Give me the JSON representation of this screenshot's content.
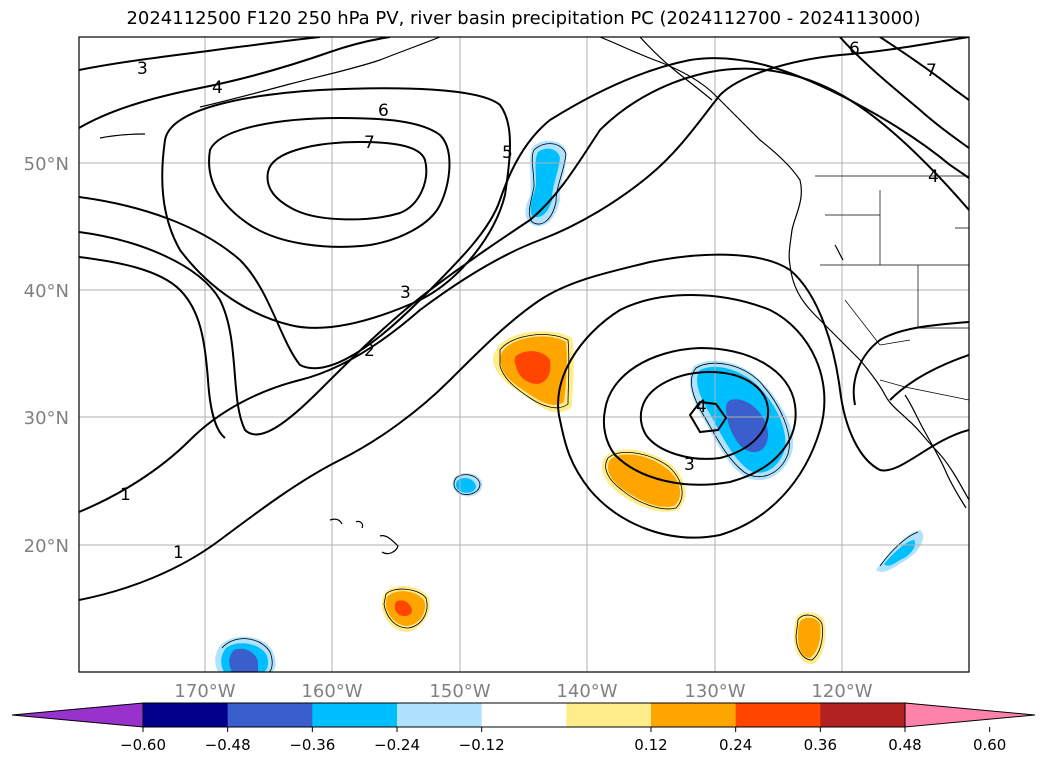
{
  "title": "2024112500 F120 250 hPa PV, river basin precipitation PC (2024112700 - 2024113000)",
  "lat_labels": [
    "50°N",
    "40°N",
    "30°N",
    "20°N"
  ],
  "lon_labels": [
    "170°W",
    "160°W",
    "150°W",
    "140°W",
    "130°W",
    "120°W"
  ],
  "contour_labels": [
    {
      "text": "3",
      "name": "pv-contour-label-3"
    },
    {
      "text": "4",
      "name": "pv-contour-label-4"
    },
    {
      "text": "6",
      "name": "pv-contour-label-6"
    },
    {
      "text": "7",
      "name": "pv-contour-label-7"
    },
    {
      "text": "5",
      "name": "pv-contour-label-5"
    },
    {
      "text": "3",
      "name": "pv-contour-label-3"
    },
    {
      "text": "2",
      "name": "pv-contour-label-2"
    },
    {
      "text": "1",
      "name": "pv-contour-label-1"
    },
    {
      "text": "1",
      "name": "pv-contour-label-1"
    },
    {
      "text": "4",
      "name": "pv-contour-label-4"
    },
    {
      "text": "3",
      "name": "pv-contour-label-3"
    },
    {
      "text": "6",
      "name": "pv-contour-label-6"
    },
    {
      "text": "7",
      "name": "pv-contour-label-7"
    },
    {
      "text": "4",
      "name": "pv-contour-label-4"
    }
  ],
  "colorbar": {
    "ticks": [
      "−0.60",
      "−0.48",
      "−0.36",
      "−0.24",
      "−0.12",
      "0.12",
      "0.24",
      "0.36",
      "0.48",
      "0.60"
    ],
    "colors": [
      "#9932cc",
      "#00008b",
      "#3a5fcd",
      "#00bfff",
      "#b0e2ff",
      "#ffffff",
      "#ffec8b",
      "#ffa500",
      "#ff4500",
      "#b22222",
      "#ff82ab"
    ]
  }
}
